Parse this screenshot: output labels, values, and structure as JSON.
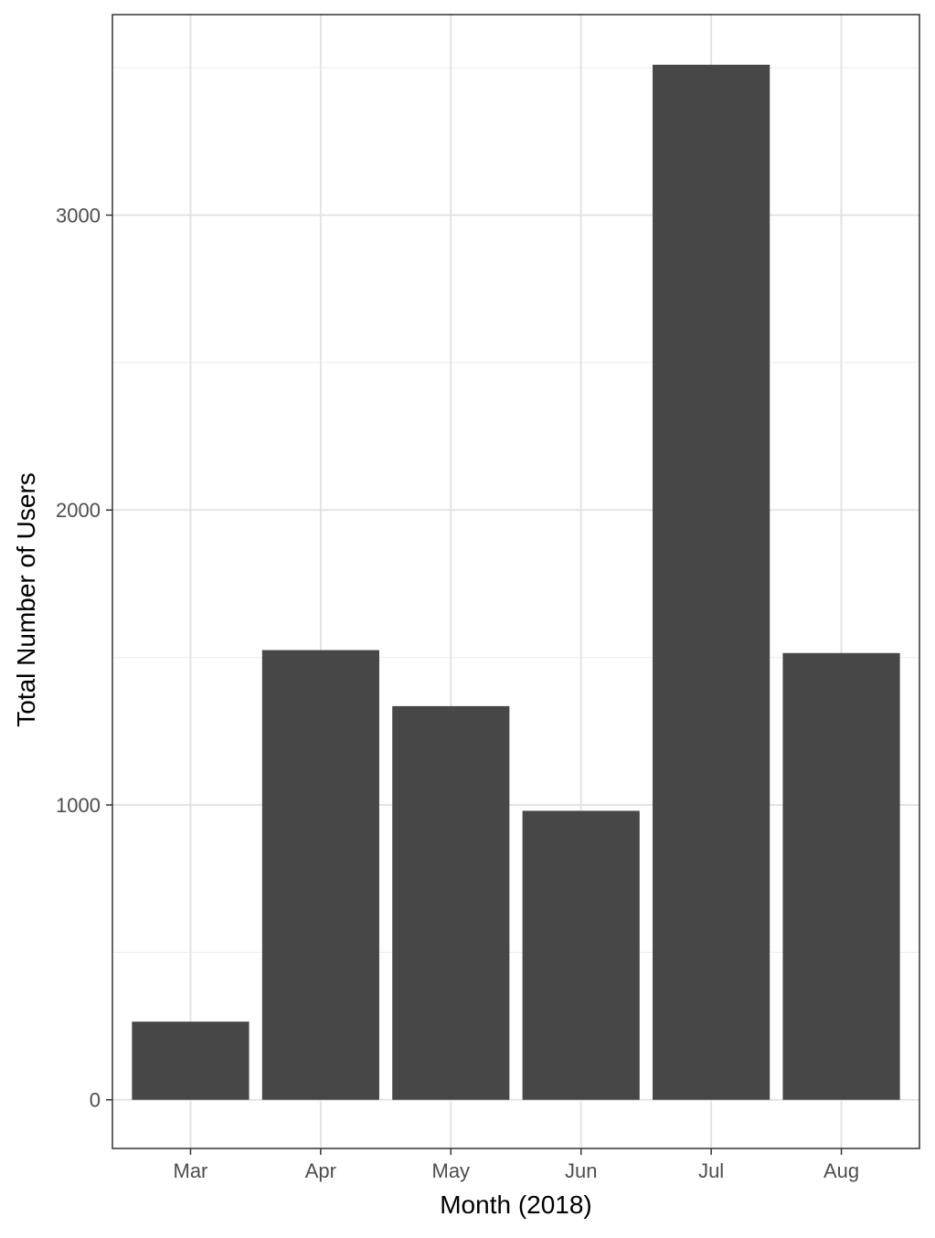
{
  "chart_data": {
    "type": "bar",
    "categories": [
      "Mar",
      "Apr",
      "May",
      "Jun",
      "Jul",
      "Aug"
    ],
    "values": [
      265,
      1525,
      1335,
      980,
      3510,
      1515
    ],
    "xlabel": "Month (2018)",
    "ylabel": "Total Number of Users",
    "ylim": [
      -165,
      3680
    ],
    "yticks": [
      0,
      1000,
      2000,
      3000
    ],
    "ytick_labels": [
      "0",
      "1000",
      "2000",
      "3000"
    ],
    "y_minor_gridlines": [
      500,
      1500,
      2500,
      3500
    ],
    "grid": true,
    "legend": "none",
    "colors": {
      "bar": "#474747",
      "panel_border": "#333333",
      "grid_major": "#e3e3e3",
      "grid_minor": "#efefef",
      "background": "#ffffff"
    }
  }
}
